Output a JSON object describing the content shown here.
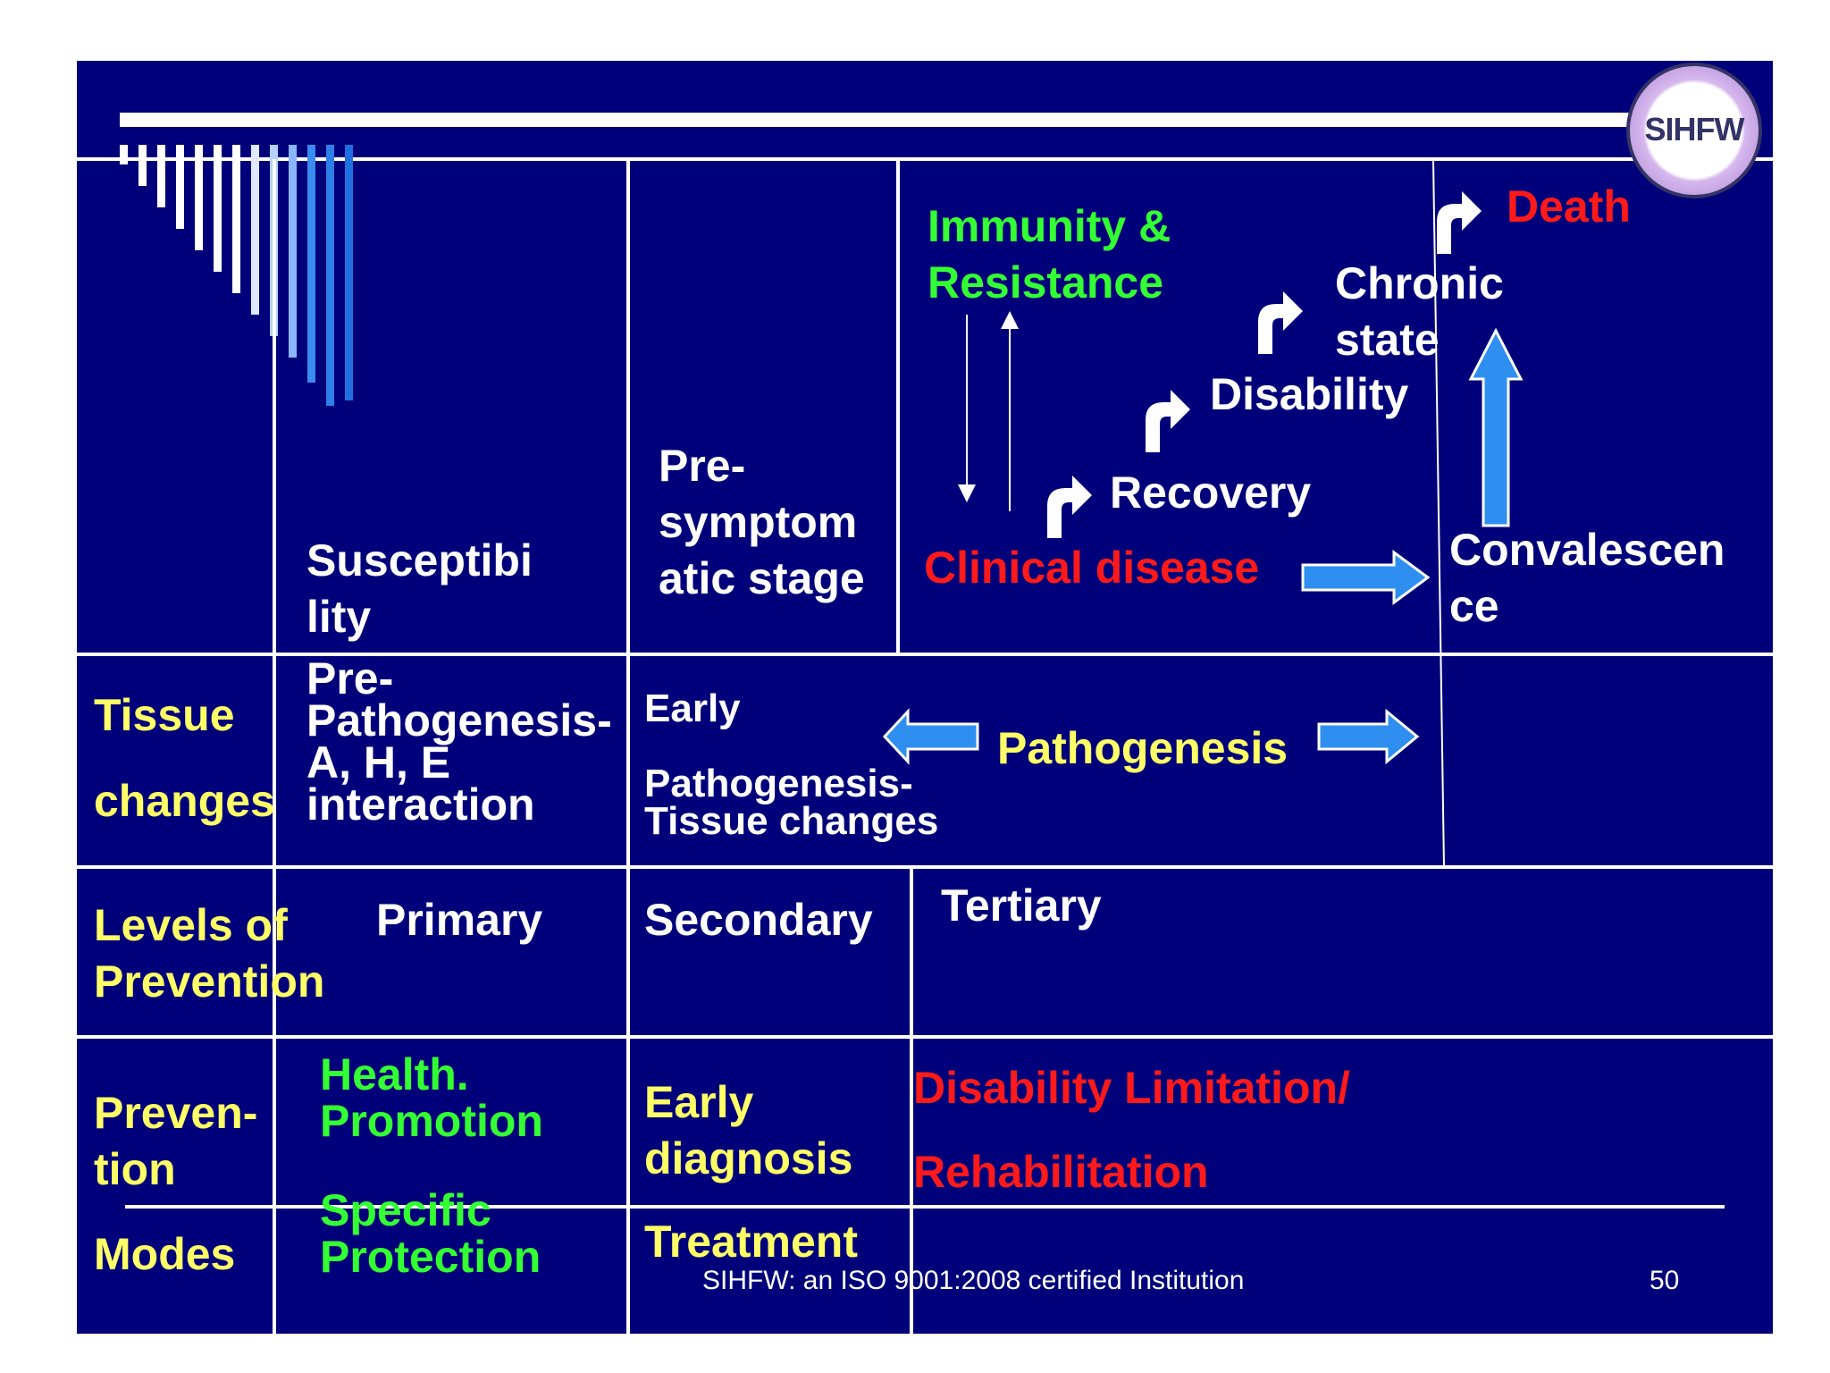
{
  "logo": {
    "text": "SIHFW"
  },
  "colors": {
    "background": "#00007b",
    "grid": "#ffffff",
    "yellow": "#ffff66",
    "green": "#33ff33",
    "red": "#ff1a1a",
    "arrow": "#2f8ff0"
  },
  "top_row": {
    "susceptibility": "Susceptibi\nlity",
    "presymptomatic": "Pre-\nsymptom\natic stage",
    "immunity": "Immunity &\nResistance",
    "clinical_disease": "Clinical disease",
    "recovery": "Recovery",
    "disability": "Disability",
    "chronic_state": "Chronic\nstate",
    "death": "Death",
    "convalescence": "Convalescen\nce"
  },
  "tissue_row": {
    "label": "Tissue\n\nchanges",
    "prepathogenesis": "Pre-\nPathogenesis-\nA, H, E\ninteraction",
    "early": "Early\n\nPathogenesis-\nTissue changes",
    "pathogenesis": "Pathogenesis"
  },
  "levels_row": {
    "label": "Levels of\nPrevention",
    "primary": "Primary",
    "secondary": "Secondary",
    "tertiary": "Tertiary"
  },
  "modes_row": {
    "label_top": "Preven-\ntion",
    "label_bottom": "Modes",
    "health_promotion": "Health.\nPromotion",
    "specific_protection": "Specific\nProtection",
    "early_diagnosis": "Early\ndiagnosis",
    "treatment": "Treatment",
    "disability_limitation": "Disability Limitation/",
    "rehabilitation": "Rehabilitation"
  },
  "footer": {
    "text": "SIHFW: an ISO 9001:2008 certified Institution",
    "page_number": "50"
  }
}
